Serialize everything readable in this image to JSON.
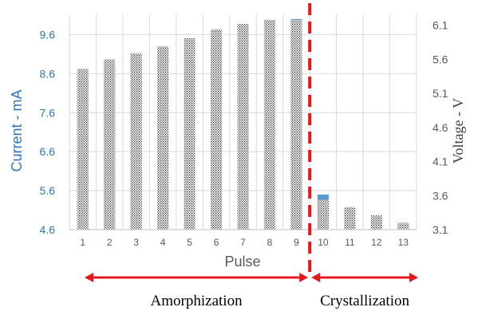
{
  "chart_data": {
    "type": "bar",
    "categories": [
      "1",
      "2",
      "3",
      "4",
      "5",
      "6",
      "7",
      "8",
      "9",
      "10",
      "11",
      "12",
      "13"
    ],
    "xlabel": "Pulse",
    "ylabel_left": "Current - mA",
    "ylabel_right": "Voltage - V",
    "yticks_left": [
      "4.6",
      "5.6",
      "6.6",
      "7.6",
      "8.6",
      "9.6"
    ],
    "yticks_right": [
      "3.1",
      "3.6",
      "4.1",
      "4.6",
      "5.1",
      "5.6",
      "6.1"
    ],
    "ylim_left": [
      4.6,
      10.12
    ],
    "ylim_right": [
      3.1,
      6.26
    ],
    "series": [
      {
        "name": "Current",
        "axis": "left",
        "color": "#5b9bd5",
        "values": [
          8.57,
          8.77,
          8.96,
          9.18,
          9.37,
          9.55,
          9.73,
          9.94,
          10.0,
          5.5,
          5.07,
          4.94,
          4.74
        ]
      },
      {
        "name": "Voltage",
        "axis": "right",
        "pattern": "hatched",
        "values": [
          5.46,
          5.6,
          5.69,
          5.79,
          5.91,
          6.04,
          6.12,
          6.18,
          6.18,
          3.54,
          3.43,
          3.31,
          3.2
        ]
      }
    ],
    "divider_after_category": "9",
    "phases": [
      {
        "label": "Amorphization",
        "from_category": "1",
        "to_category": "9"
      },
      {
        "label": "Crystallization",
        "from_category": "10",
        "to_category": "13"
      }
    ],
    "grid": true,
    "colors": {
      "divider": "#e31a1c",
      "arrows": "#e31a1c",
      "left_axis_text": "#2e75b6",
      "gridline": "#d9d9d9"
    }
  }
}
